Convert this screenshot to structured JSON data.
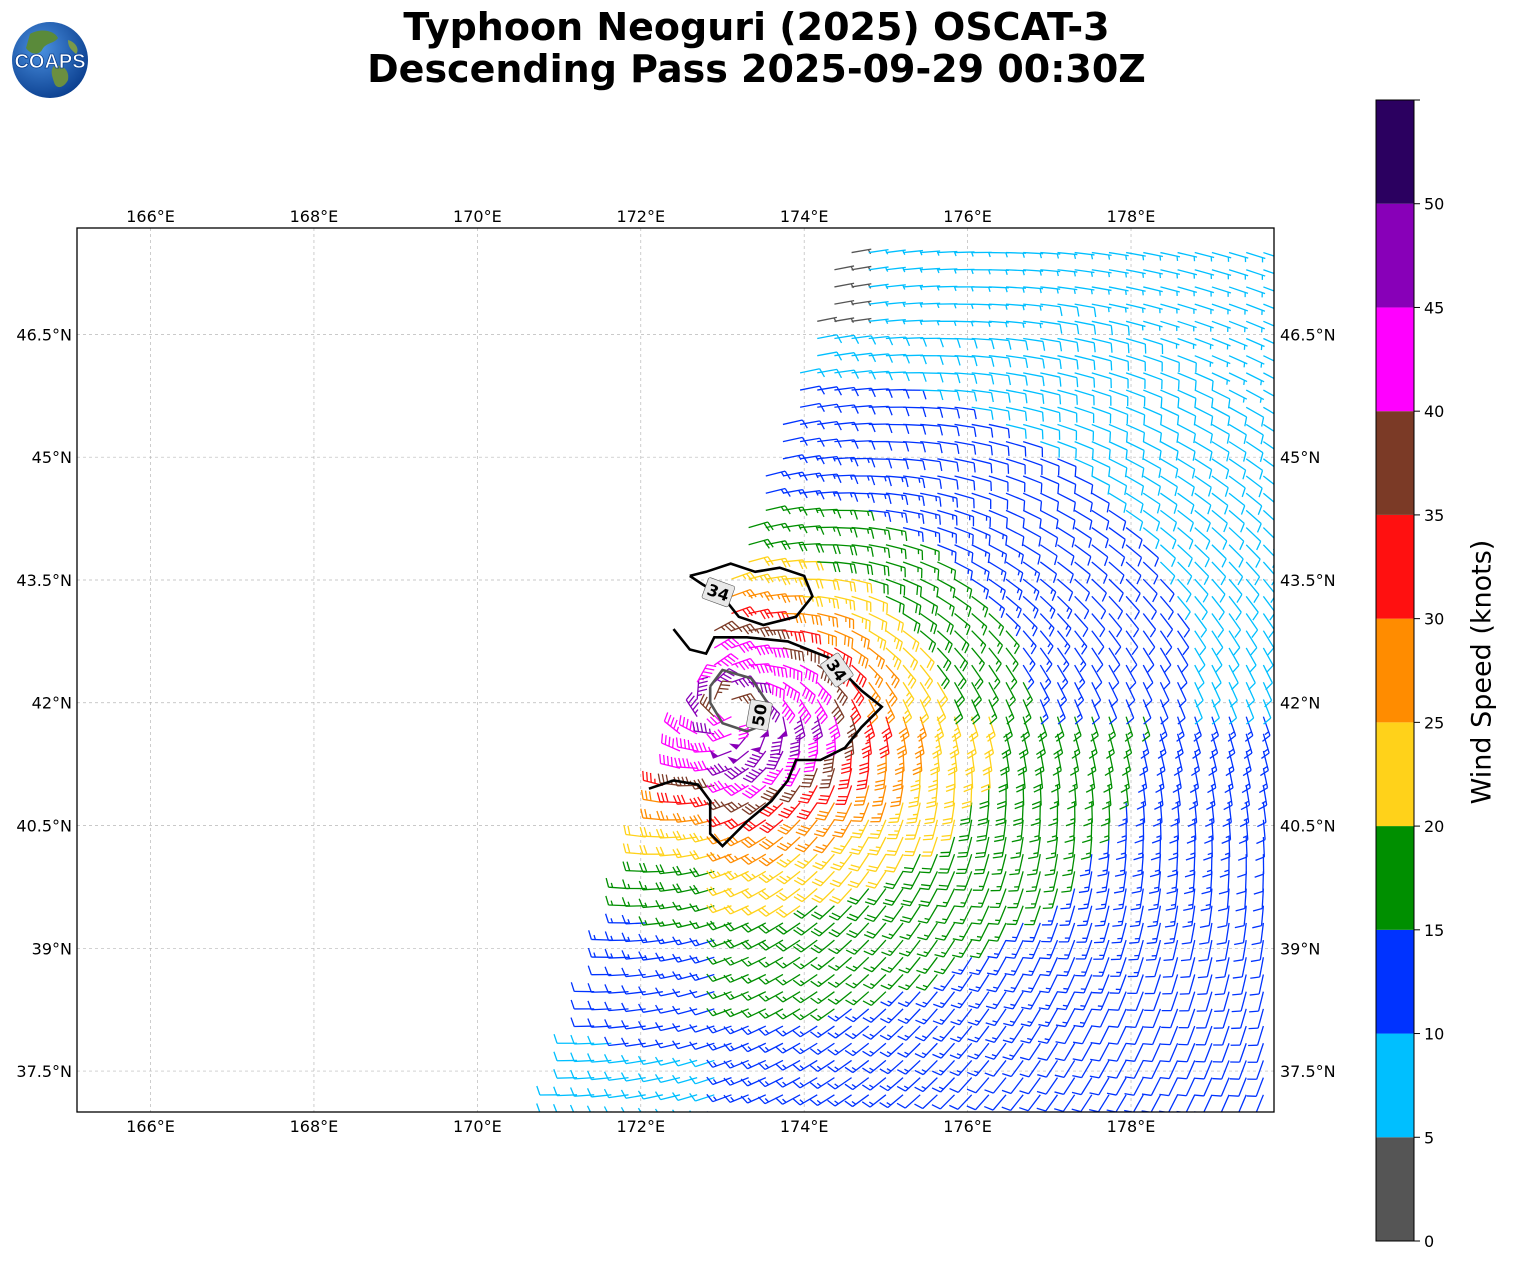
{
  "title": {
    "line1": "Typhoon Neoguri (2025) OSCAT-3",
    "line2": "Descending Pass 2025-09-29 00:30Z"
  },
  "logo": {
    "text": "COAPS",
    "icon": "globe-logo-icon"
  },
  "map": {
    "lon_range": [
      165.1,
      179.75
    ],
    "lat_range": [
      37.0,
      47.8
    ],
    "lon_ticks": [
      "166°E",
      "168°E",
      "170°E",
      "172°E",
      "174°E",
      "176°E",
      "178°E"
    ],
    "lon_tick_values": [
      166,
      168,
      170,
      172,
      174,
      176,
      178
    ],
    "lat_ticks": [
      "37.5°N",
      "39°N",
      "40.5°N",
      "42°N",
      "43.5°N",
      "45°N",
      "46.5°N"
    ],
    "lat_tick_values": [
      37.5,
      39,
      40.5,
      42,
      43.5,
      45,
      46.5
    ],
    "grid": true,
    "storm_center": {
      "lon": 173.1,
      "lat": 41.9
    }
  },
  "contours": [
    {
      "label": "34",
      "label_lon": 172.95,
      "label_lat": 43.35,
      "color": "#000000"
    },
    {
      "label": "34",
      "label_lon": 174.4,
      "label_lat": 42.4,
      "color": "#000000"
    },
    {
      "label": "50",
      "label_lon": 173.45,
      "label_lat": 41.85,
      "color": "#555555"
    }
  ],
  "colorbar": {
    "label": "Wind Speed (knots)",
    "ticks": [
      "0",
      "5",
      "10",
      "15",
      "20",
      "25",
      "30",
      "35",
      "40",
      "45",
      "50"
    ],
    "bins": [
      {
        "min": 0,
        "max": 5,
        "color": "#555555"
      },
      {
        "min": 5,
        "max": 10,
        "color": "#00bfff"
      },
      {
        "min": 10,
        "max": 15,
        "color": "#0033ff"
      },
      {
        "min": 15,
        "max": 20,
        "color": "#008f00"
      },
      {
        "min": 20,
        "max": 25,
        "color": "#ffd21a"
      },
      {
        "min": 25,
        "max": 30,
        "color": "#ff8c00"
      },
      {
        "min": 30,
        "max": 35,
        "color": "#ff1010"
      },
      {
        "min": 35,
        "max": 40,
        "color": "#7b3a26"
      },
      {
        "min": 40,
        "max": 45,
        "color": "#ff00ff"
      },
      {
        "min": 45,
        "max": 50,
        "color": "#8800b8"
      },
      {
        "min": 50,
        "max": 55,
        "color": "#2b0060"
      }
    ]
  }
}
